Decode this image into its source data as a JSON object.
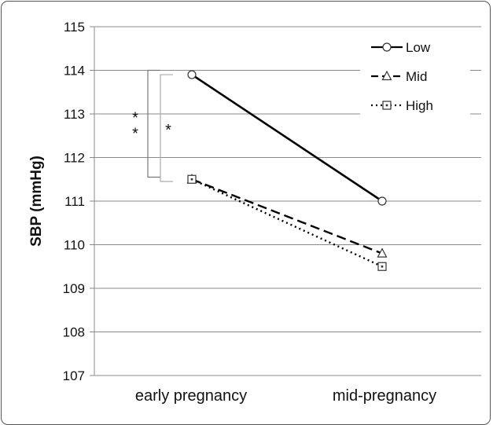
{
  "chart_data": {
    "type": "line",
    "title": "",
    "xlabel": "",
    "ylabel": "SBP (mmHg)",
    "ylim": [
      107,
      115
    ],
    "yticks": [
      107,
      108,
      109,
      110,
      111,
      112,
      113,
      114,
      115
    ],
    "grid": true,
    "legend_position": "top-right",
    "categories": [
      "early pregnancy",
      "mid-pregnancy"
    ],
    "series": [
      {
        "name": "Low",
        "values": [
          113.9,
          111.0
        ],
        "line_style": "solid",
        "marker": "circle"
      },
      {
        "name": "Mid",
        "values": [
          111.5,
          109.8
        ],
        "line_style": "dashed",
        "marker": "triangle"
      },
      {
        "name": "High",
        "values": [
          111.5,
          109.5
        ],
        "line_style": "dotted",
        "marker": "square"
      }
    ],
    "annotations": [
      {
        "text": "* *",
        "description": "bracket Low vs Mid at early pregnancy",
        "range": [
          111.55,
          114.0
        ]
      },
      {
        "text": "*",
        "description": "bracket Low vs High at early pregnancy",
        "range": [
          111.45,
          113.9
        ]
      }
    ]
  }
}
